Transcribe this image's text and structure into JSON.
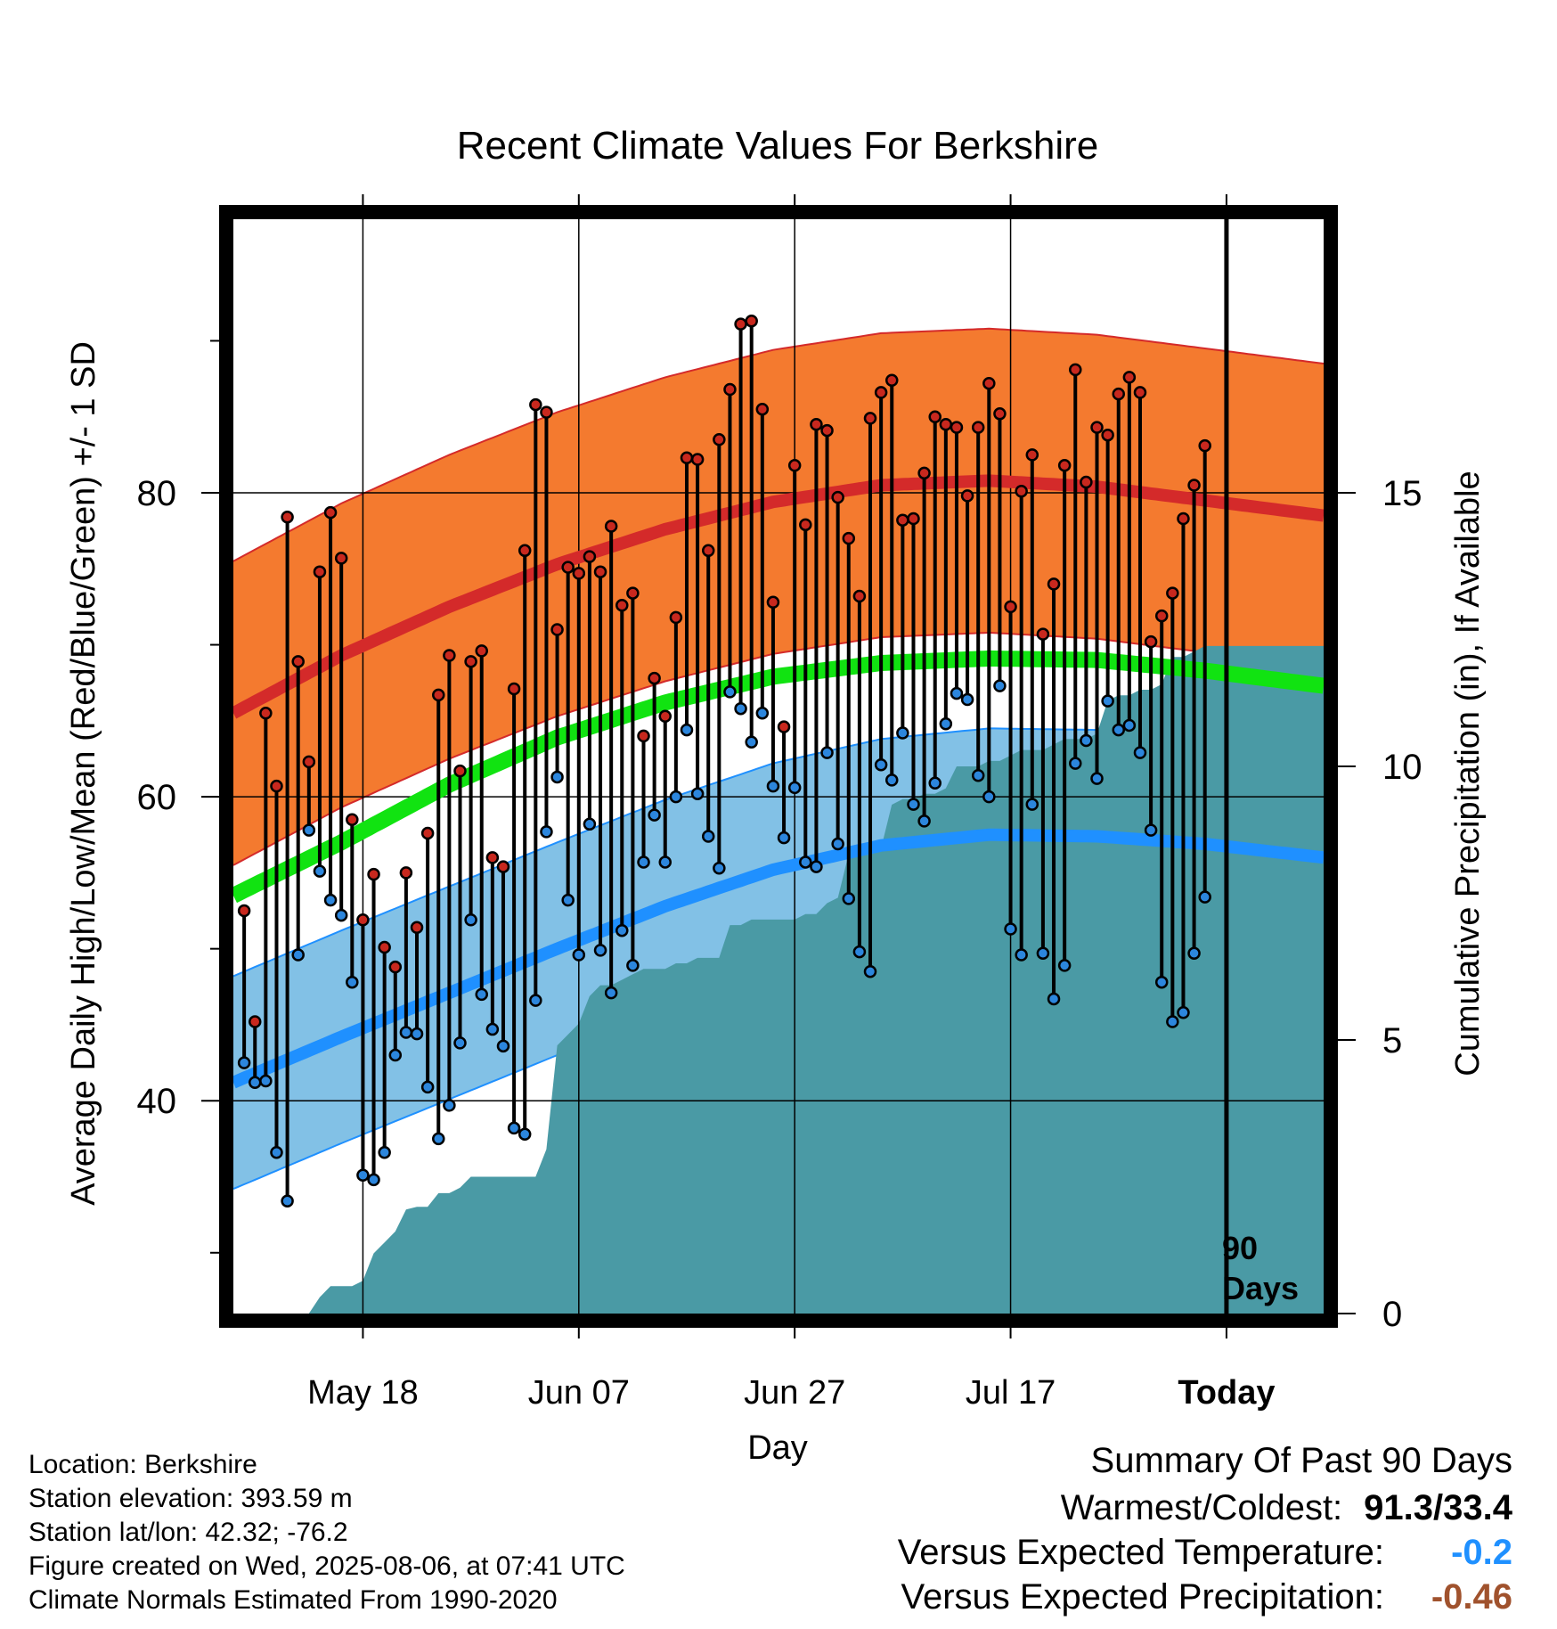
{
  "chart_data": {
    "type": "line",
    "title": "Recent Climate Values For Berkshire",
    "xlabel": "Day",
    "ylabel": "Average Daily High/Low/Mean (Red/Blue/Green) +/- 1 SD",
    "y2label": "Cumulative Precipitation (in), If Available",
    "x_tick_labels": [
      "May 18",
      "Jun 07",
      "Jun 27",
      "Jul 17",
      "Today"
    ],
    "x_tick_days": [
      12,
      32,
      52,
      72,
      92
    ],
    "xlim": [
      0,
      101
    ],
    "ylim": [
      26,
      98
    ],
    "y_ticks": [
      40,
      60,
      80
    ],
    "y_minor_ticks": [
      30,
      50,
      70,
      90
    ],
    "y2lim": [
      0,
      20
    ],
    "y2_ticks": [
      0,
      5,
      10,
      15
    ],
    "grid": true,
    "today_day": 92,
    "period_label": "90 Days",
    "colors": {
      "high_band": "#f47a2f",
      "high_line": "#d42a2a",
      "low_band": "#82c1e6",
      "low_line": "#1f90ff",
      "mean_line": "#11e311",
      "precip": "#4a9aa5",
      "high_dot": "#c8281e",
      "low_dot": "#2c86dd"
    },
    "normals": {
      "days": [
        0,
        10,
        20,
        30,
        40,
        50,
        60,
        70,
        80,
        90,
        101
      ],
      "high": [
        65.5,
        69.3,
        72.5,
        75.3,
        77.6,
        79.4,
        80.5,
        80.8,
        80.4,
        79.5,
        78.5
      ],
      "low": [
        41.2,
        44.2,
        47.1,
        50.0,
        52.8,
        55.2,
        56.8,
        57.5,
        57.4,
        56.9,
        56.0
      ],
      "mean": [
        53.5,
        57.0,
        60.8,
        63.9,
        66.2,
        67.9,
        68.8,
        69.1,
        69.0,
        68.3,
        67.3
      ],
      "high_sd": 10.0,
      "low_sd": 7.0
    },
    "daily_high": [
      52.5,
      45.2,
      65.5,
      60.7,
      78.4,
      68.9,
      62.3,
      74.8,
      78.7,
      75.7,
      58.5,
      51.9,
      54.9,
      50.1,
      48.8,
      55.0,
      51.4,
      57.6,
      66.7,
      69.3,
      61.7,
      68.9,
      69.6,
      56.0,
      55.4,
      67.1,
      76.2,
      85.8,
      85.3,
      71.0,
      75.1,
      74.7,
      75.8,
      74.8,
      77.8,
      72.6,
      73.4,
      64.0,
      67.8,
      65.3,
      71.8,
      82.3,
      82.2,
      76.2,
      83.5,
      86.8,
      91.1,
      91.3,
      85.5,
      72.8,
      64.6,
      81.8,
      77.9,
      84.5,
      84.1,
      79.7,
      77.0,
      73.2,
      84.9,
      86.6,
      87.4,
      78.2,
      78.3,
      81.3,
      85.0,
      84.5,
      84.3,
      79.8,
      84.3,
      87.2,
      85.2,
      72.5,
      80.1,
      82.5,
      70.7,
      74.0,
      81.8,
      88.1,
      80.7,
      84.3,
      83.8,
      86.5,
      87.6,
      86.6,
      70.2,
      71.9,
      73.4,
      78.3,
      80.5,
      83.1
    ],
    "daily_low": [
      42.5,
      41.2,
      41.3,
      36.6,
      33.4,
      49.6,
      57.8,
      55.1,
      53.2,
      52.2,
      47.8,
      35.1,
      34.8,
      36.6,
      43.0,
      44.5,
      44.4,
      40.9,
      37.5,
      39.7,
      43.8,
      51.9,
      47.0,
      44.7,
      43.6,
      38.2,
      37.8,
      46.6,
      57.7,
      61.3,
      53.2,
      49.6,
      58.2,
      49.9,
      47.1,
      51.2,
      48.9,
      55.7,
      58.8,
      55.7,
      60.0,
      64.4,
      60.2,
      57.4,
      55.3,
      66.9,
      65.8,
      63.6,
      65.5,
      60.7,
      57.3,
      60.6,
      55.7,
      55.4,
      62.9,
      56.9,
      53.3,
      49.8,
      48.5,
      62.1,
      61.1,
      64.2,
      59.5,
      58.4,
      60.9,
      64.8,
      66.8,
      66.4,
      61.4,
      60.0,
      67.3,
      51.3,
      49.6,
      59.5,
      49.7,
      46.7,
      48.9,
      62.2,
      63.7,
      61.2,
      66.3,
      64.4,
      64.7,
      62.9,
      57.8,
      47.8,
      45.2,
      45.8,
      49.7,
      53.4
    ],
    "cumulative_precip": {
      "days": [
        0,
        7,
        8,
        9,
        10,
        11,
        12,
        13,
        14,
        15,
        16,
        17,
        18,
        19,
        20,
        21,
        22,
        23,
        24,
        25,
        26,
        27,
        28,
        29,
        30,
        31,
        32,
        33,
        34,
        35,
        36,
        37,
        38,
        39,
        40,
        41,
        42,
        43,
        44,
        45,
        46,
        47,
        48,
        49,
        50,
        51,
        52,
        53,
        54,
        55,
        56,
        57,
        58,
        59,
        60,
        61,
        62,
        63,
        64,
        65,
        66,
        67,
        68,
        69,
        70,
        71,
        72,
        73,
        74,
        75,
        76,
        77,
        78,
        79,
        80,
        81,
        82,
        83,
        84,
        85,
        86,
        87,
        88,
        89,
        90,
        101
      ],
      "values": [
        0,
        0,
        0.3,
        0.5,
        0.5,
        0.5,
        0.6,
        1.1,
        1.3,
        1.5,
        1.9,
        1.95,
        1.95,
        2.2,
        2.2,
        2.3,
        2.5,
        2.5,
        2.5,
        2.5,
        2.5,
        2.5,
        2.5,
        3.0,
        4.9,
        5.1,
        5.3,
        5.8,
        6.0,
        6.0,
        6.1,
        6.2,
        6.3,
        6.3,
        6.3,
        6.4,
        6.4,
        6.5,
        6.5,
        6.5,
        7.1,
        7.1,
        7.2,
        7.2,
        7.2,
        7.2,
        7.2,
        7.3,
        7.3,
        7.5,
        7.6,
        8.4,
        8.4,
        8.5,
        8.5,
        9.3,
        9.4,
        9.4,
        9.5,
        9.5,
        9.6,
        10.0,
        10.0,
        10.0,
        10.1,
        10.1,
        10.2,
        10.3,
        10.3,
        10.3,
        10.4,
        10.5,
        10.5,
        10.5,
        10.6,
        11.2,
        11.3,
        11.3,
        11.4,
        11.4,
        11.5,
        12.0,
        12.0,
        12.1,
        12.2,
        12.2
      ]
    }
  },
  "info": {
    "location": "Location: Berkshire",
    "elevation": "Station elevation: 393.59 m",
    "latlon": "Station lat/lon: 42.32; -76.2",
    "created": "Figure created on Wed, 2025-08-06, at 07:41 UTC",
    "normals": "Climate Normals Estimated From 1990-2020"
  },
  "summary": {
    "title": "Summary Of Past 90 Days",
    "warmest_label": "Warmest/Coldest:",
    "warmest_value": "91.3/33.4",
    "temp_label": "Versus Expected Temperature:",
    "temp_value": "-0.2",
    "temp_color": "#1f90ff",
    "precip_label": "Versus Expected Precipitation:",
    "precip_value": "-0.46",
    "precip_color": "#a0522d"
  }
}
